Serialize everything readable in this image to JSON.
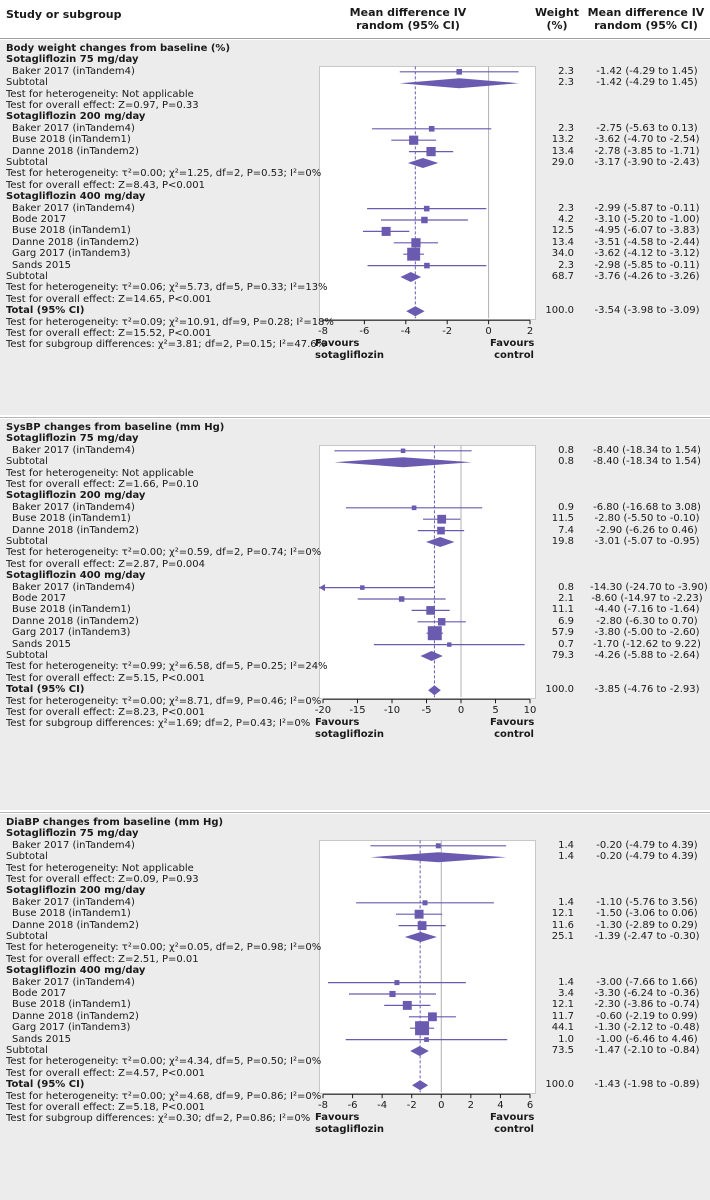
{
  "header": {
    "study_col": "Study or subgroup",
    "md_col": [
      "Mean difference IV",
      "random (95% CI)"
    ],
    "weight_col": [
      "Weight",
      "(%)"
    ],
    "ci_col": [
      "Mean difference IV",
      "random (95% CI)"
    ]
  },
  "colors": {
    "marker": "#6a5ab0",
    "line": "#6a5ab0",
    "band": "#ececec",
    "zero_line": "#b0b0b0"
  },
  "chart_data": [
    {
      "type": "forest",
      "title": "Body weight changes  from baseline (%)",
      "axis": {
        "min": -8,
        "max": 2,
        "ticks": [
          -8,
          -6,
          -4,
          -2,
          0,
          2
        ]
      },
      "favours_left": [
        "Favours",
        "sotagliflozin"
      ],
      "favours_right": [
        "Favours",
        "control"
      ],
      "overall_dashed_line": -3.54,
      "rows": [
        {
          "text": "Body weight changes  from baseline (%)",
          "kind": "section"
        },
        {
          "text": "Sotagliflozin 75 mg/day",
          "kind": "subgroup"
        },
        {
          "text": "Baker 2017 (inTandem4)",
          "kind": "study",
          "md": -1.42,
          "lo": -4.29,
          "hi": 1.45,
          "weight": "2.3",
          "ci": "-1.42 (-4.29 to 1.45)"
        },
        {
          "text": "Subtotal",
          "kind": "subtotal",
          "md": -1.42,
          "lo": -4.29,
          "hi": 1.45,
          "weight": "2.3",
          "ci": "-1.42 (-4.29 to 1.45)"
        },
        {
          "text": "Test for heterogeneity: Not applicable",
          "kind": "note"
        },
        {
          "text": "Test for overall effect: Z=0.97, P=0.33",
          "kind": "note"
        },
        {
          "text": "Sotagliflozin 200 mg/day",
          "kind": "subgroup"
        },
        {
          "text": "Baker 2017 (inTandem4)",
          "kind": "study",
          "md": -2.75,
          "lo": -5.63,
          "hi": 0.13,
          "weight": "2.3",
          "ci": "-2.75 (-5.63 to 0.13)"
        },
        {
          "text": "Buse 2018 (inTandem1)",
          "kind": "study",
          "md": -3.62,
          "lo": -4.7,
          "hi": -2.54,
          "weight": "13.2",
          "ci": "-3.62 (-4.70 to -2.54)"
        },
        {
          "text": "Danne 2018 (inTandem2)",
          "kind": "study",
          "md": -2.78,
          "lo": -3.85,
          "hi": -1.71,
          "weight": "13.4",
          "ci": "-2.78 (-3.85 to -1.71)"
        },
        {
          "text": "Subtotal",
          "kind": "subtotal",
          "md": -3.17,
          "lo": -3.9,
          "hi": -2.43,
          "weight": "29.0",
          "ci": "-3.17 (-3.90 to -2.43)"
        },
        {
          "text": "Test for heterogeneity: τ²=0.00; χ²=1.25, df=2, P=0.53; I²=0%",
          "kind": "note"
        },
        {
          "text": "Test for overall effect: Z=8.43, P<0.001",
          "kind": "note"
        },
        {
          "text": "Sotagliflozin 400 mg/day",
          "kind": "subgroup"
        },
        {
          "text": "Baker 2017 (inTandem4)",
          "kind": "study",
          "md": -2.99,
          "lo": -5.87,
          "hi": -0.11,
          "weight": "2.3",
          "ci": "-2.99 (-5.87 to -0.11)"
        },
        {
          "text": "Bode 2017",
          "kind": "study",
          "md": -3.1,
          "lo": -5.2,
          "hi": -1.0,
          "weight": "4.2",
          "ci": "-3.10 (-5.20 to -1.00)"
        },
        {
          "text": "Buse 2018 (inTandem1)",
          "kind": "study",
          "md": -4.95,
          "lo": -6.07,
          "hi": -3.83,
          "weight": "12.5",
          "ci": "-4.95 (-6.07 to -3.83)"
        },
        {
          "text": "Danne 2018 (inTandem2)",
          "kind": "study",
          "md": -3.51,
          "lo": -4.58,
          "hi": -2.44,
          "weight": "13.4",
          "ci": "-3.51 (-4.58 to -2.44)"
        },
        {
          "text": "Garg 2017 (inTandem3)",
          "kind": "study",
          "md": -3.62,
          "lo": -4.12,
          "hi": -3.12,
          "weight": "34.0",
          "ci": "-3.62 (-4.12 to -3.12)"
        },
        {
          "text": "Sands 2015",
          "kind": "study",
          "md": -2.98,
          "lo": -5.85,
          "hi": -0.11,
          "weight": "2.3",
          "ci": "-2.98 (-5.85 to -0.11)"
        },
        {
          "text": "Subtotal",
          "kind": "subtotal",
          "md": -3.76,
          "lo": -4.26,
          "hi": -3.26,
          "weight": "68.7",
          "ci": "-3.76 (-4.26 to -3.26)"
        },
        {
          "text": "Test for heterogeneity: τ²=0.06; χ²=5.73, df=5, P=0.33; I²=13%",
          "kind": "note"
        },
        {
          "text": "Test for overall effect: Z=14.65, P<0.001",
          "kind": "note"
        },
        {
          "text": "Total (95% CI)",
          "kind": "total",
          "md": -3.54,
          "lo": -3.98,
          "hi": -3.09,
          "weight": "100.0",
          "ci": "-3.54 (-3.98 to -3.09)"
        },
        {
          "text": "Test for heterogeneity: τ²=0.09; χ²=10.91, df=9, P=0.28; I²=18%",
          "kind": "note"
        },
        {
          "text": "Test for overall effect: Z=15.52, P<0.001",
          "kind": "note"
        },
        {
          "text": "Test for subgroup differences: χ²=3.81; df=2, P=0.15; I²=47.6%",
          "kind": "note"
        }
      ]
    },
    {
      "type": "forest",
      "title": "SysBP changes from baseline (mm Hg)",
      "axis": {
        "min": -20,
        "max": 10,
        "ticks": [
          -20,
          -15,
          -10,
          -5,
          0,
          5,
          10
        ]
      },
      "favours_left": [
        "Favours",
        "sotagliflozin"
      ],
      "favours_right": [
        "Favours",
        "control"
      ],
      "overall_dashed_line": -3.85,
      "rows": [
        {
          "text": "SysBP changes from baseline (mm Hg)",
          "kind": "section"
        },
        {
          "text": "Sotagliflozin 75 mg/day",
          "kind": "subgroup"
        },
        {
          "text": "Baker 2017 (inTandem4)",
          "kind": "study",
          "md": -8.4,
          "lo": -18.34,
          "hi": 1.54,
          "weight": "0.8",
          "ci": "-8.40 (-18.34 to 1.54)"
        },
        {
          "text": "Subtotal",
          "kind": "subtotal",
          "md": -8.4,
          "lo": -18.34,
          "hi": 1.54,
          "weight": "0.8",
          "ci": "-8.40 (-18.34 to 1.54)"
        },
        {
          "text": "Test for heterogeneity: Not applicable",
          "kind": "note"
        },
        {
          "text": "Test for overall effect: Z=1.66, P=0.10",
          "kind": "note"
        },
        {
          "text": "Sotagliflozin 200 mg/day",
          "kind": "subgroup"
        },
        {
          "text": "Baker 2017 (inTandem4)",
          "kind": "study",
          "md": -6.8,
          "lo": -16.68,
          "hi": 3.08,
          "weight": "0.9",
          "ci": "-6.80 (-16.68 to 3.08)"
        },
        {
          "text": "Buse 2018 (inTandem1)",
          "kind": "study",
          "md": -2.8,
          "lo": -5.5,
          "hi": -0.1,
          "weight": "11.5",
          "ci": "-2.80 (-5.50 to -0.10)"
        },
        {
          "text": "Danne 2018 (inTandem2)",
          "kind": "study",
          "md": -2.9,
          "lo": -6.26,
          "hi": 0.46,
          "weight": "7.4",
          "ci": "-2.90 (-6.26 to 0.46)"
        },
        {
          "text": "Subtotal",
          "kind": "subtotal",
          "md": -3.01,
          "lo": -5.07,
          "hi": -0.95,
          "weight": "19.8",
          "ci": "-3.01 (-5.07 to -0.95)"
        },
        {
          "text": "Test for heterogeneity: τ²=0.00; χ²=0.59, df=2, P=0.74; I²=0%",
          "kind": "note"
        },
        {
          "text": "Test for overall effect: Z=2.87, P=0.004",
          "kind": "note"
        },
        {
          "text": "Sotagliflozin 400 mg/day",
          "kind": "subgroup"
        },
        {
          "text": "Baker 2017 (inTandem4)",
          "kind": "study",
          "md": -14.3,
          "lo": -24.7,
          "hi": -3.9,
          "weight": "0.8",
          "ci": "-14.30 (-24.70 to -3.90)"
        },
        {
          "text": "Bode 2017",
          "kind": "study",
          "md": -8.6,
          "lo": -14.97,
          "hi": -2.23,
          "weight": "2.1",
          "ci": "-8.60 (-14.97 to -2.23)"
        },
        {
          "text": "Buse 2018 (inTandem1)",
          "kind": "study",
          "md": -4.4,
          "lo": -7.16,
          "hi": -1.64,
          "weight": "11.1",
          "ci": "-4.40 (-7.16 to -1.64)"
        },
        {
          "text": "Danne 2018 (inTandem2)",
          "kind": "study",
          "md": -2.8,
          "lo": -6.3,
          "hi": 0.7,
          "weight": "6.9",
          "ci": "-2.80 (-6.30 to 0.70)"
        },
        {
          "text": "Garg 2017 (inTandem3)",
          "kind": "study",
          "md": -3.8,
          "lo": -5.0,
          "hi": -2.6,
          "weight": "57.9",
          "ci": "-3.80 (-5.00 to -2.60)"
        },
        {
          "text": "Sands 2015",
          "kind": "study",
          "md": -1.7,
          "lo": -12.62,
          "hi": 9.22,
          "weight": "0.7",
          "ci": "-1.70 (-12.62 to 9.22)"
        },
        {
          "text": "Subtotal",
          "kind": "subtotal",
          "md": -4.26,
          "lo": -5.88,
          "hi": -2.64,
          "weight": "79.3",
          "ci": "-4.26 (-5.88 to -2.64)"
        },
        {
          "text": "Test for heterogeneity: τ²=0.99; χ²=6.58, df=5, P=0.25; I²=24%",
          "kind": "note"
        },
        {
          "text": "Test for overall effect: Z=5.15, P<0.001",
          "kind": "note"
        },
        {
          "text": "Total (95% CI)",
          "kind": "total",
          "md": -3.85,
          "lo": -4.76,
          "hi": -2.93,
          "weight": "100.0",
          "ci": "-3.85 (-4.76 to -2.93)"
        },
        {
          "text": "Test for heterogeneity: τ²=0.00; χ²=8.71, df=9, P=0.46; I²=0%",
          "kind": "note"
        },
        {
          "text": "Test for overall effect: Z=8.23, P<0.001",
          "kind": "note"
        },
        {
          "text": "Test for subgroup differences: χ²=1.69; df=2, P=0.43; I²=0%",
          "kind": "note"
        }
      ]
    },
    {
      "type": "forest",
      "title": "DiaBP changes from baseline (mm Hg)",
      "axis": {
        "min": -8,
        "max": 6,
        "ticks": [
          -8,
          -6,
          -4,
          -2,
          0,
          2,
          4,
          6
        ]
      },
      "favours_left": [
        "Favours",
        "sotagliflozin"
      ],
      "favours_right": [
        "Favours",
        "control"
      ],
      "overall_dashed_line": -1.43,
      "rows": [
        {
          "text": "DiaBP changes from baseline (mm Hg)",
          "kind": "section"
        },
        {
          "text": "Sotagliflozin 75 mg/day",
          "kind": "subgroup"
        },
        {
          "text": "Baker 2017 (inTandem4)",
          "kind": "study",
          "md": -0.2,
          "lo": -4.79,
          "hi": 4.39,
          "weight": "1.4",
          "ci": "-0.20 (-4.79 to 4.39)"
        },
        {
          "text": "Subtotal",
          "kind": "subtotal",
          "md": -0.2,
          "lo": -4.79,
          "hi": 4.39,
          "weight": "1.4",
          "ci": "-0.20 (-4.79 to 4.39)"
        },
        {
          "text": "Test for heterogeneity: Not applicable",
          "kind": "note"
        },
        {
          "text": "Test for overall effect: Z=0.09, P=0.93",
          "kind": "note"
        },
        {
          "text": "Sotagliflozin 200 mg/day",
          "kind": "subgroup"
        },
        {
          "text": "Baker 2017 (inTandem4)",
          "kind": "study",
          "md": -1.1,
          "lo": -5.76,
          "hi": 3.56,
          "weight": "1.4",
          "ci": "-1.10 (-5.76 to 3.56)"
        },
        {
          "text": "Buse 2018 (inTandem1)",
          "kind": "study",
          "md": -1.5,
          "lo": -3.06,
          "hi": 0.06,
          "weight": "12.1",
          "ci": "-1.50 (-3.06 to 0.06)"
        },
        {
          "text": "Danne 2018 (inTandem2)",
          "kind": "study",
          "md": -1.3,
          "lo": -2.89,
          "hi": 0.29,
          "weight": "11.6",
          "ci": "-1.30 (-2.89 to 0.29)"
        },
        {
          "text": "Subtotal",
          "kind": "subtotal",
          "md": -1.39,
          "lo": -2.47,
          "hi": -0.3,
          "weight": "25.1",
          "ci": "-1.39 (-2.47 to -0.30)"
        },
        {
          "text": "Test for heterogeneity: τ²=0.00; χ²=0.05, df=2, P=0.98; I²=0%",
          "kind": "note"
        },
        {
          "text": "Test for overall effect: Z=2.51, P=0.01",
          "kind": "note"
        },
        {
          "text": "Sotagliflozin 400 mg/day",
          "kind": "subgroup"
        },
        {
          "text": "Baker 2017 (inTandem4)",
          "kind": "study",
          "md": -3.0,
          "lo": -7.66,
          "hi": 1.66,
          "weight": "1.4",
          "ci": "-3.00 (-7.66 to 1.66)"
        },
        {
          "text": "Bode 2017",
          "kind": "study",
          "md": -3.3,
          "lo": -6.24,
          "hi": -0.36,
          "weight": "3.4",
          "ci": "-3.30 (-6.24 to -0.36)"
        },
        {
          "text": "Buse 2018 (inTandem1)",
          "kind": "study",
          "md": -2.3,
          "lo": -3.86,
          "hi": -0.74,
          "weight": "12.1",
          "ci": "-2.30 (-3.86 to -0.74)"
        },
        {
          "text": "Danne 2018 (inTandem2)",
          "kind": "study",
          "md": -0.6,
          "lo": -2.19,
          "hi": 0.99,
          "weight": "11.7",
          "ci": "-0.60 (-2.19 to 0.99)"
        },
        {
          "text": "Garg 2017 (inTandem3)",
          "kind": "study",
          "md": -1.3,
          "lo": -2.12,
          "hi": -0.48,
          "weight": "44.1",
          "ci": "-1.30 (-2.12 to -0.48)"
        },
        {
          "text": "Sands 2015",
          "kind": "study",
          "md": -1.0,
          "lo": -6.46,
          "hi": 4.46,
          "weight": "1.0",
          "ci": "-1.00 (-6.46 to 4.46)"
        },
        {
          "text": "Subtotal",
          "kind": "subtotal",
          "md": -1.47,
          "lo": -2.1,
          "hi": -0.84,
          "weight": "73.5",
          "ci": "-1.47 (-2.10 to -0.84)"
        },
        {
          "text": "Test for heterogeneity: τ²=0.00; χ²=4.34, df=5, P=0.50; I²=0%",
          "kind": "note"
        },
        {
          "text": "Test for overall effect: Z=4.57, P<0.001",
          "kind": "note"
        },
        {
          "text": "Total (95% CI)",
          "kind": "total",
          "md": -1.43,
          "lo": -1.98,
          "hi": -0.89,
          "weight": "100.0",
          "ci": "-1.43 (-1.98 to -0.89)"
        },
        {
          "text": "Test for heterogeneity: τ²=0.00; χ²=4.68, df=9, P=0.86; I²=0%",
          "kind": "note"
        },
        {
          "text": "Test for overall effect: Z=5.18, P<0.001",
          "kind": "note"
        },
        {
          "text": "Test for subgroup differences: χ²=0.30; df=2, P=0.86; I²=0%",
          "kind": "note"
        }
      ]
    }
  ]
}
